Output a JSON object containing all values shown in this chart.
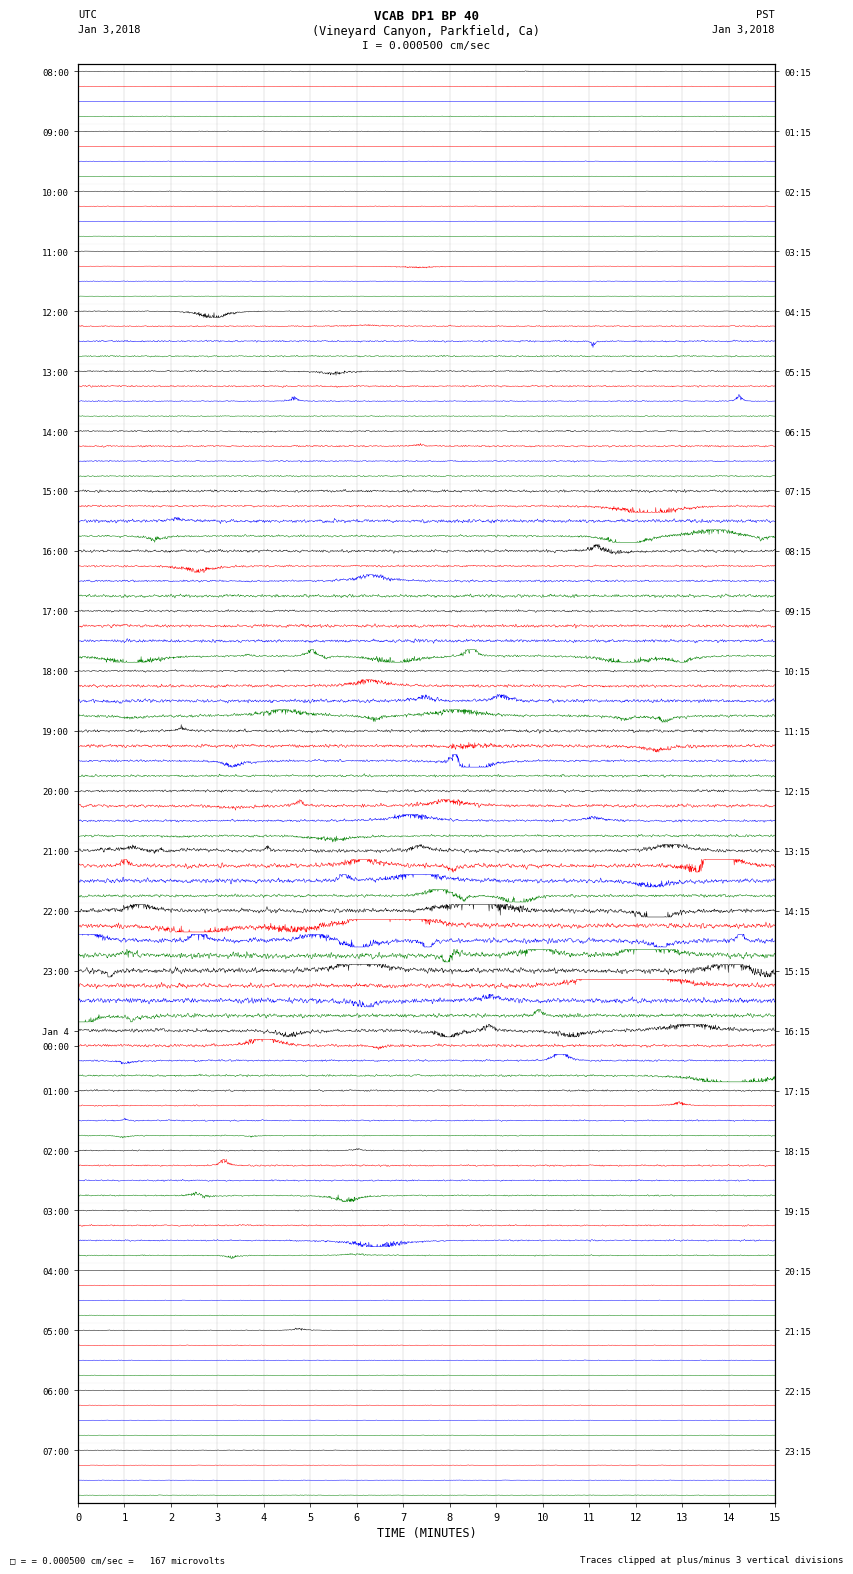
{
  "title_line1": "VCAB DP1 BP 40",
  "title_line2": "(Vineyard Canyon, Parkfield, Ca)",
  "scale_label": "I = 0.000500 cm/sec",
  "utc_label": "UTC",
  "pst_label": "PST",
  "date_left": "Jan 3,2018",
  "date_right": "Jan 3,2018",
  "xlabel": "TIME (MINUTES)",
  "footer_left": "= 0.000500 cm/sec =   167 microvolts",
  "footer_right": "Traces clipped at plus/minus 3 vertical divisions",
  "num_groups": 24,
  "traces_per_group": 4,
  "trace_colors": [
    "black",
    "red",
    "blue",
    "green"
  ],
  "x_ticks": [
    0,
    1,
    2,
    3,
    4,
    5,
    6,
    7,
    8,
    9,
    10,
    11,
    12,
    13,
    14,
    15
  ],
  "left_time_labels": {
    "0": "08:00",
    "4": "09:00",
    "8": "10:00",
    "12": "11:00",
    "16": "12:00",
    "20": "13:00",
    "24": "14:00",
    "28": "15:00",
    "32": "16:00",
    "36": "17:00",
    "40": "18:00",
    "44": "19:00",
    "48": "20:00",
    "52": "21:00",
    "56": "22:00",
    "60": "23:00",
    "64": "Jan 4",
    "65": "00:00",
    "68": "01:00",
    "72": "02:00",
    "76": "03:00",
    "80": "04:00",
    "84": "05:00",
    "88": "06:00",
    "92": "07:00"
  },
  "right_time_labels": {
    "0": "00:15",
    "4": "01:15",
    "8": "02:15",
    "12": "03:15",
    "16": "04:15",
    "20": "05:15",
    "24": "06:15",
    "28": "07:15",
    "32": "08:15",
    "36": "09:15",
    "40": "10:15",
    "44": "11:15",
    "48": "12:15",
    "52": "13:15",
    "56": "14:15",
    "60": "15:15",
    "64": "16:15",
    "68": "17:15",
    "72": "18:15",
    "76": "19:15",
    "80": "20:15",
    "84": "21:15",
    "88": "22:15",
    "92": "23:15"
  },
  "active_rows": [
    28,
    29,
    30,
    31,
    32,
    33,
    34,
    35,
    36,
    37,
    38,
    39,
    40,
    41,
    42,
    43,
    44,
    45,
    46,
    47,
    48,
    49,
    50,
    51,
    52,
    53,
    54,
    55,
    56,
    57,
    58,
    59,
    60,
    61,
    62,
    63,
    64,
    65,
    66,
    67
  ],
  "very_active_rows": [
    52,
    53,
    54,
    55,
    56,
    57,
    58,
    59,
    60,
    61,
    62,
    63
  ],
  "moderate_rows": [
    16,
    17,
    18,
    19,
    20,
    21,
    22,
    23,
    24,
    25,
    26,
    27,
    68,
    69,
    70,
    71,
    72,
    73,
    74,
    75,
    76,
    77,
    78,
    79
  ],
  "quiet_rows": [
    0,
    1,
    2,
    3,
    4,
    5,
    6,
    7,
    8,
    9,
    10,
    11,
    12,
    13,
    14,
    15,
    80,
    81,
    82,
    83,
    84,
    85,
    86,
    87,
    88,
    89,
    90,
    91,
    92,
    93,
    94,
    95
  ]
}
